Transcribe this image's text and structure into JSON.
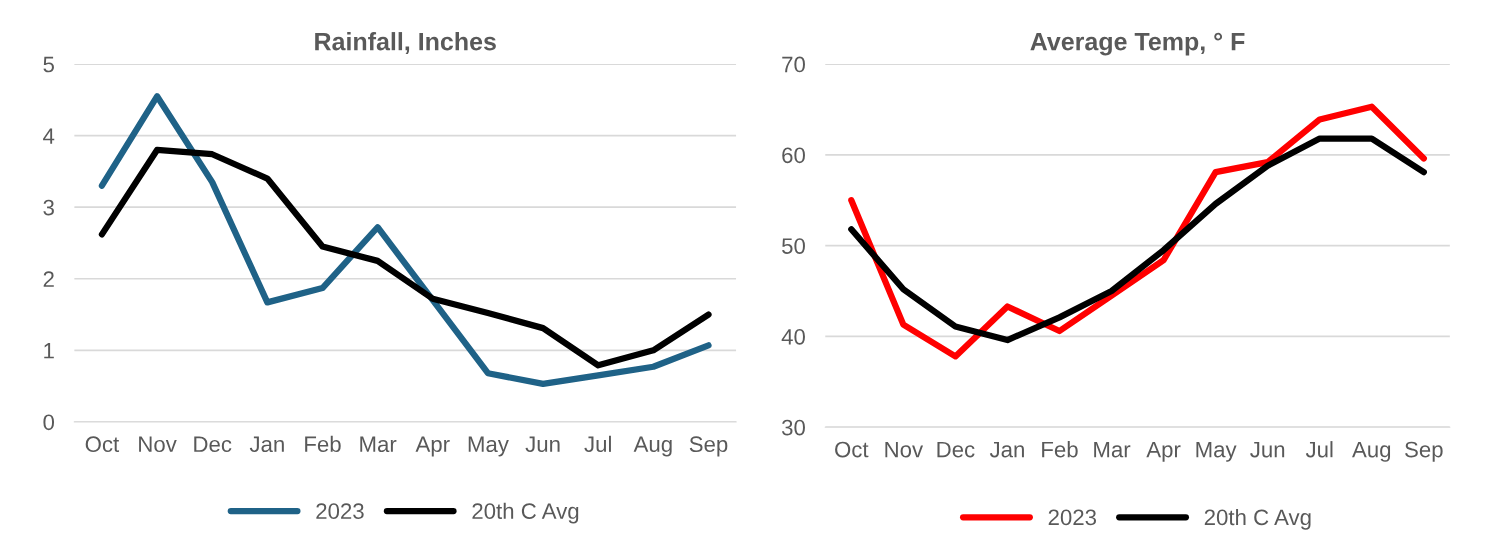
{
  "chart_data": [
    {
      "type": "line",
      "title": "Rainfall, Inches",
      "categories": [
        "Oct",
        "Nov",
        "Dec",
        "Jan",
        "Feb",
        "Mar",
        "Apr",
        "May",
        "Jun",
        "Jul",
        "Aug",
        "Sep"
      ],
      "series": [
        {
          "name": "2023",
          "color": "#1f6287",
          "values": [
            3.3,
            4.55,
            3.35,
            1.67,
            1.87,
            2.72,
            1.7,
            0.68,
            0.53,
            0.65,
            0.77,
            1.07
          ]
        },
        {
          "name": "20th C Avg",
          "color": "#000000",
          "values": [
            2.62,
            3.8,
            3.74,
            3.4,
            2.45,
            2.25,
            1.72,
            1.52,
            1.31,
            0.79,
            1.0,
            1.5
          ]
        }
      ],
      "ylim": [
        0,
        5
      ],
      "yticks": [
        0,
        1,
        2,
        3,
        4,
        5
      ],
      "grid": "y",
      "legend": "bottom",
      "marker": "none",
      "line_style": "solid"
    },
    {
      "type": "line",
      "title": "Average Temp, ° F",
      "categories": [
        "Oct",
        "Nov",
        "Dec",
        "Jan",
        "Feb",
        "Mar",
        "Apr",
        "May",
        "Jun",
        "Jul",
        "Aug",
        "Sep"
      ],
      "series": [
        {
          "name": "2023",
          "color": "#ff0000",
          "values": [
            55,
            41.3,
            37.8,
            43.3,
            40.6,
            44.5,
            48.4,
            58.1,
            59.2,
            63.9,
            65.3,
            59.6
          ]
        },
        {
          "name": "20th C Avg",
          "color": "#000000",
          "values": [
            51.8,
            45.2,
            41.1,
            39.6,
            42.1,
            45,
            49.5,
            54.6,
            58.8,
            61.8,
            61.8,
            58.1
          ]
        }
      ],
      "ylim": [
        30,
        70
      ],
      "yticks": [
        30,
        40,
        50,
        60,
        70
      ],
      "grid": "y",
      "legend": "bottom",
      "marker": "none",
      "line_style": "solid"
    }
  ]
}
